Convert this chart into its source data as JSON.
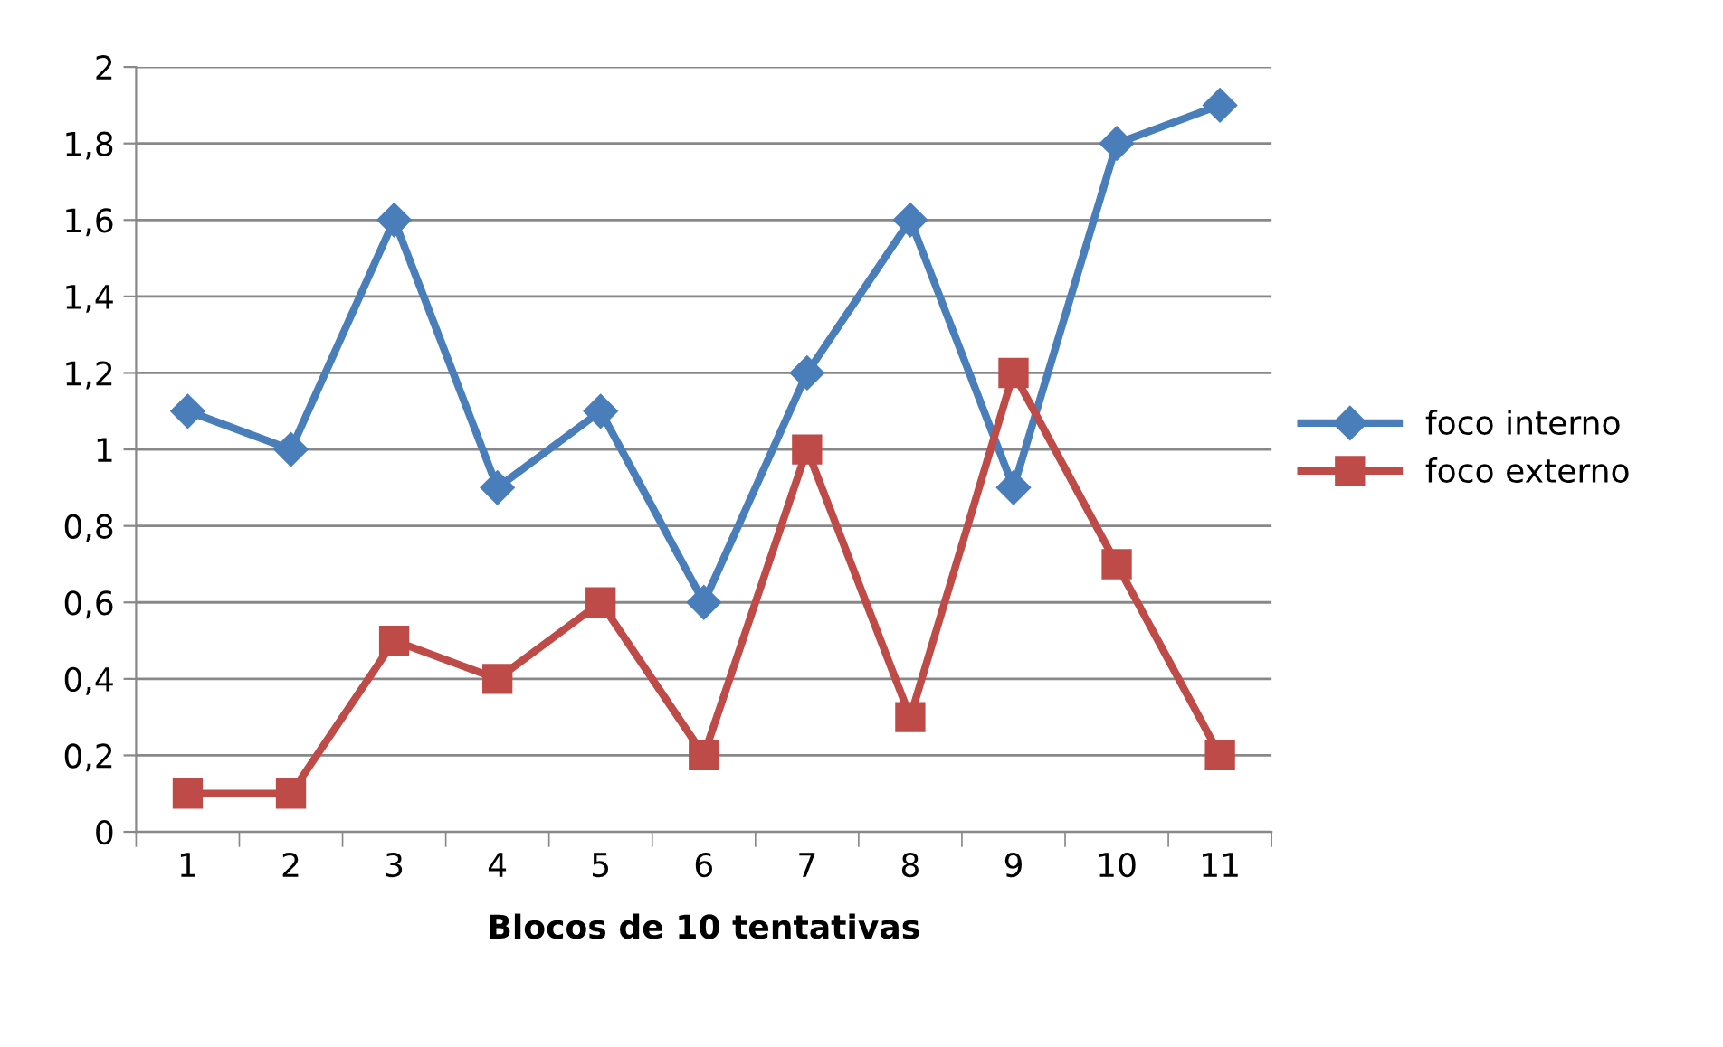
{
  "chart_data": {
    "type": "line",
    "xlabel": "Blocos de 10 tentativas",
    "categories": [
      "1",
      "2",
      "3",
      "4",
      "5",
      "6",
      "7",
      "8",
      "9",
      "10",
      "11"
    ],
    "series": [
      {
        "name": "foco interno",
        "color": "#4a7ebb",
        "marker": "diamond",
        "values": [
          1.1,
          1.0,
          1.6,
          0.9,
          1.1,
          0.6,
          1.2,
          1.6,
          0.9,
          1.8,
          1.9
        ]
      },
      {
        "name": "foco externo",
        "color": "#be4b48",
        "marker": "square",
        "values": [
          0.1,
          0.1,
          0.5,
          0.4,
          0.6,
          0.2,
          1.0,
          0.3,
          1.2,
          0.7,
          0.2
        ]
      }
    ],
    "ylim": [
      0,
      2
    ],
    "yticks": [
      0,
      {
        "value": 0.2,
        "label": "0,2"
      },
      {
        "value": 0.4,
        "label": "0,4"
      },
      {
        "value": 0.6,
        "label": "0,6"
      },
      {
        "value": 0.8,
        "label": "0,8"
      },
      1,
      {
        "value": 1.2,
        "label": "1,2"
      },
      {
        "value": 1.4,
        "label": "1,4"
      },
      {
        "value": 1.6,
        "label": "1,6"
      },
      {
        "value": 1.8,
        "label": "1,8"
      },
      2
    ],
    "grid": "y",
    "legend": "right",
    "line_style": "solid"
  }
}
